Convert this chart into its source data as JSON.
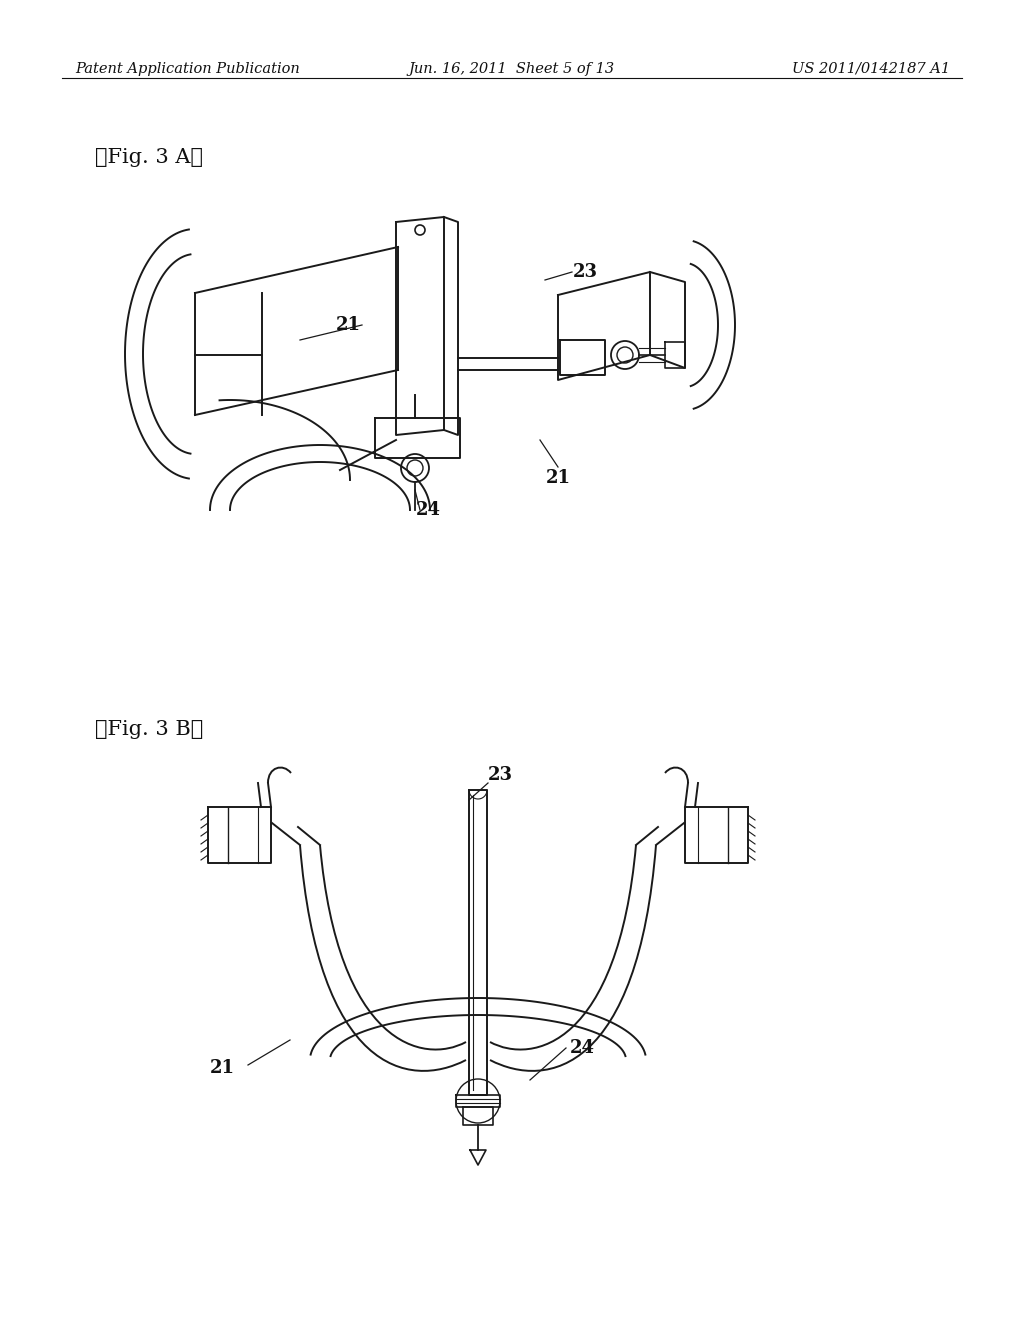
{
  "background_color": "#ffffff",
  "header_left": "Patent Application Publication",
  "header_center": "Jun. 16, 2011  Sheet 5 of 13",
  "header_right": "US 2011/0142187 A1",
  "fig3a_label": "[　Fig. 3 A　]",
  "fig3b_label": "[　Fig. 3 B　]",
  "text_color": "#111111",
  "line_color": "#1a1a1a",
  "header_fontsize": 10.5,
  "label_fontsize": 15
}
